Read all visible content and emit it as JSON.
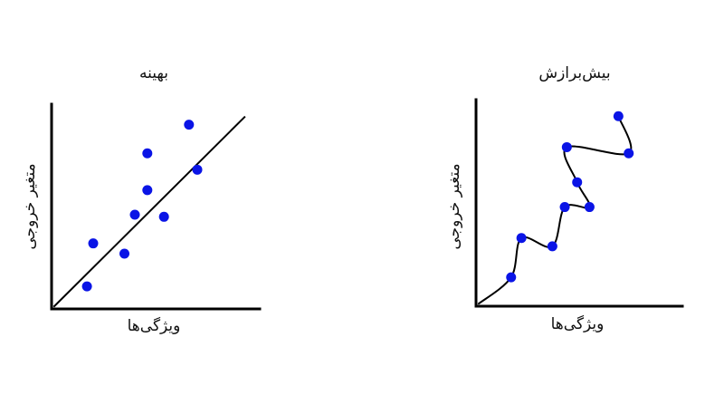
{
  "colors": {
    "point": "#0a14e6",
    "line": "#000000",
    "axis": "#000000",
    "background": "#ffffff"
  },
  "panels": [
    {
      "id": "good-fit",
      "title": "بهینه",
      "xlabel": "ویژگی‌ها",
      "ylabel": "متغیر خروجی",
      "curve_type": "straight-line",
      "chart_data": {
        "type": "scatter",
        "xlim": [
          0,
          100
        ],
        "ylim": [
          0,
          100
        ],
        "points": [
          {
            "x": 17,
            "y": 11
          },
          {
            "x": 20,
            "y": 32
          },
          {
            "x": 35,
            "y": 27
          },
          {
            "x": 40,
            "y": 46
          },
          {
            "x": 46,
            "y": 58
          },
          {
            "x": 46,
            "y": 76
          },
          {
            "x": 54,
            "y": 45
          },
          {
            "x": 66,
            "y": 90
          },
          {
            "x": 70,
            "y": 68
          }
        ],
        "fit_line": [
          [
            1,
            1
          ],
          [
            93,
            94
          ]
        ]
      }
    },
    {
      "id": "overfit",
      "title": "بیش‌برازش",
      "xlabel": "ویژگی‌ها",
      "ylabel": "متغیر خروجی",
      "curve_type": "interpolating-curve",
      "chart_data": {
        "type": "scatter",
        "xlim": [
          0,
          100
        ],
        "ylim": [
          0,
          100
        ],
        "points": [
          {
            "x": 17,
            "y": 14
          },
          {
            "x": 22,
            "y": 33
          },
          {
            "x": 37,
            "y": 29
          },
          {
            "x": 43,
            "y": 48
          },
          {
            "x": 49,
            "y": 60
          },
          {
            "x": 44,
            "y": 77
          },
          {
            "x": 55,
            "y": 48
          },
          {
            "x": 69,
            "y": 92
          },
          {
            "x": 74,
            "y": 74
          }
        ],
        "curve_start": [
          1,
          1
        ],
        "curve_order": [
          0,
          1,
          2,
          3,
          6,
          4,
          5,
          8,
          7
        ]
      }
    }
  ]
}
